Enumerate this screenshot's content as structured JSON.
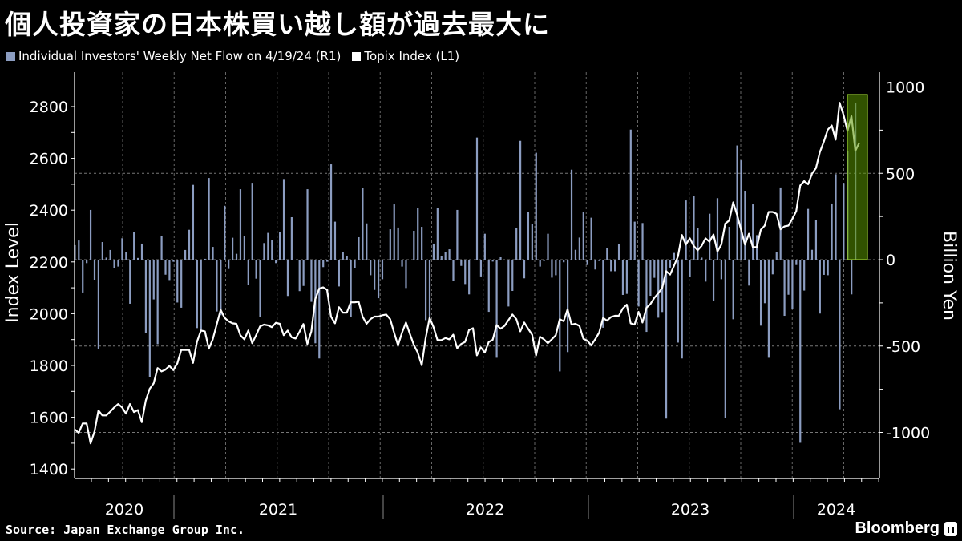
{
  "title": "個人投資家の日本株買い越し額が過去最大に",
  "legend": [
    {
      "label": "Individual Investors' Weekly Net Flow on 4/19/24 (R1)",
      "color": "#8c9dc1"
    },
    {
      "label": "Topix Index (L1)",
      "color": "#ffffff"
    }
  ],
  "source": "Source: Japan Exchange Group Inc.",
  "logo": "Bloomberg",
  "chart_data": {
    "type": "bar+line",
    "title": "個人投資家の日本株買い越し額が過去最大に",
    "x_tick_labels": [
      "2020",
      "2021",
      "2022",
      "2023",
      "2024"
    ],
    "grid": true,
    "legend_position": "top-left",
    "highlight": {
      "color": "#9acd32",
      "covers": "latest weeks"
    },
    "left_axis": {
      "label": "Index Level",
      "range": [
        1360,
        2880
      ],
      "ticks": [
        "2800",
        "2600",
        "2400",
        "2200",
        "2000",
        "1800",
        "1600",
        "1400"
      ]
    },
    "right_axis": {
      "label": "Billion Yen",
      "range": [
        -1270,
        1085
      ],
      "ticks": [
        "1000",
        "500",
        "0",
        "-500",
        "-1000"
      ]
    },
    "series": [
      {
        "name": "Individual Investors' Weekly Net Flow on 4/19/24 (R1)",
        "type": "bar",
        "axis": "right",
        "color": "#8c9dc1",
        "values": [
          84,
          111,
          -190,
          -20,
          288,
          -116,
          -515,
          102,
          12,
          56,
          -50,
          -40,
          124,
          42,
          -255,
          158,
          10,
          93,
          -425,
          -680,
          -230,
          -489,
          139,
          -87,
          -118,
          -12,
          -248,
          -278,
          56,
          173,
          433,
          -396,
          -407,
          5,
          473,
          74,
          -300,
          -322,
          312,
          -54,
          127,
          34,
          408,
          139,
          -147,
          445,
          -110,
          -330,
          96,
          155,
          116,
          -20,
          161,
          467,
          -210,
          246,
          0,
          -182,
          -152,
          408,
          -244,
          -484,
          -572,
          -43,
          -12,
          552,
          220,
          -155,
          46,
          22,
          -333,
          -50,
          130,
          413,
          210,
          -90,
          -175,
          -223,
          -113,
          0,
          176,
          320,
          186,
          -40,
          -164,
          0,
          167,
          297,
          190,
          -350,
          -331,
          93,
          297,
          22,
          42,
          60,
          -124,
          288,
          -36,
          -141,
          -201,
          0,
          707,
          -97,
          150,
          -302,
          -11,
          -568,
          14,
          0,
          -271,
          -181,
          183,
          688,
          -108,
          278,
          206,
          619,
          -40,
          -8,
          150,
          -104,
          -90,
          -647,
          -15,
          -535,
          521,
          57,
          128,
          278,
          -31,
          243,
          -57,
          -8,
          -394,
          65,
          -67,
          -67,
          90,
          -204,
          -198,
          753,
          220,
          -271,
          212,
          -418,
          -209,
          -105,
          -336,
          -303,
          -920,
          -46,
          39,
          -480,
          -572,
          343,
          -101,
          367,
          183,
          12,
          -127,
          266,
          -240,
          356,
          -113,
          -917,
          190,
          -345,
          661,
          575,
          399,
          -150,
          320,
          142,
          -382,
          -252,
          -568,
          -85,
          46,
          418,
          -325,
          -203,
          -283,
          -31,
          -1060,
          -179,
          294,
          57,
          229,
          -312,
          -88,
          -90,
          325,
          495,
          -866,
          444,
          631,
          -201,
          905
        ]
      },
      {
        "name": "Topix Index (L1)",
        "type": "line",
        "axis": "left",
        "color": "#ffffff",
        "values": [
          1553,
          1540,
          1576,
          1576,
          1499,
          1545,
          1626,
          1607,
          1607,
          1622,
          1638,
          1651,
          1638,
          1614,
          1651,
          1620,
          1628,
          1581,
          1664,
          1710,
          1731,
          1790,
          1777,
          1784,
          1798,
          1782,
          1808,
          1860,
          1860,
          1860,
          1810,
          1891,
          1935,
          1932,
          1865,
          1901,
          1958,
          2015,
          1984,
          1971,
          1963,
          1961,
          1917,
          1901,
          1935,
          1886,
          1917,
          1951,
          1958,
          1955,
          1948,
          1965,
          1961,
          1917,
          1935,
          1909,
          1904,
          1930,
          1960,
          1883,
          1932,
          2056,
          2097,
          2102,
          2092,
          1989,
          1963,
          2025,
          2004,
          2004,
          2044,
          2044,
          2046,
          1989,
          1961,
          1979,
          1989,
          1989,
          1994,
          1997,
          1979,
          1927,
          1878,
          1927,
          1966,
          1922,
          1880,
          1850,
          1801,
          1906,
          1984,
          1948,
          1898,
          1898,
          1906,
          1901,
          1919,
          1867,
          1883,
          1891,
          1937,
          1944,
          1839,
          1870,
          1850,
          1891,
          1899,
          1956,
          1942,
          1953,
          1975,
          1997,
          1979,
          1932,
          1966,
          1942,
          1919,
          1839,
          1911,
          1901,
          1886,
          1901,
          1917,
          1979,
          1971,
          2017,
          1958,
          1961,
          1953,
          1903,
          1896,
          1878,
          1901,
          1927,
          1984,
          1973,
          1987,
          1992,
          1992,
          2020,
          2035,
          1963,
          1958,
          2007,
          1966,
          2023,
          2037,
          2061,
          2079,
          2099,
          2164,
          2151,
          2185,
          2221,
          2304,
          2267,
          2291,
          2262,
          2245,
          2262,
          2291,
          2278,
          2306,
          2240,
          2267,
          2348,
          2360,
          2430,
          2381,
          2324,
          2267,
          2309,
          2257,
          2257,
          2324,
          2340,
          2393,
          2393,
          2386,
          2326,
          2337,
          2340,
          2366,
          2396,
          2495,
          2512,
          2500,
          2541,
          2562,
          2624,
          2665,
          2711,
          2727,
          2672,
          2815,
          2768,
          2706,
          2763,
          2629,
          2660
        ]
      }
    ]
  }
}
